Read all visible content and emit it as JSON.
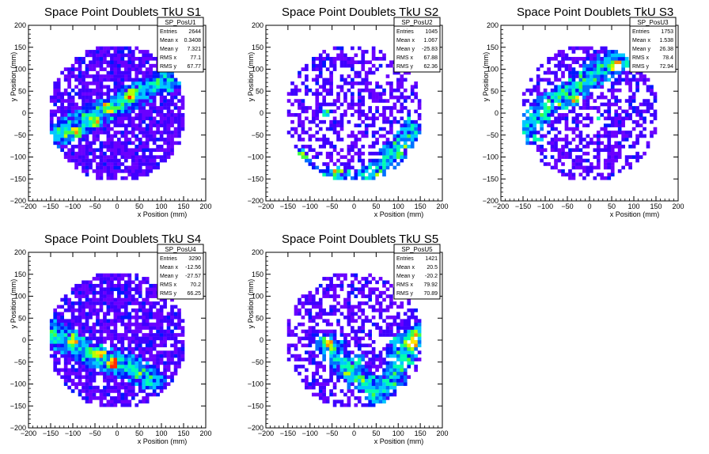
{
  "window": {
    "background": "#ffffff"
  },
  "chart_data": [
    {
      "type": "heatmap",
      "title": "Space Point Doublets TkU S1",
      "xlabel": "x Position (mm)",
      "ylabel": "y Position (mm)",
      "xlim": [
        -200,
        200
      ],
      "ylim": [
        -200,
        200
      ],
      "xticks": [
        -200,
        -150,
        -100,
        -50,
        0,
        50,
        100,
        150,
        200
      ],
      "yticks": [
        -200,
        -150,
        -100,
        -50,
        0,
        50,
        100,
        150,
        200
      ],
      "stats": {
        "name": "SP_PosU1",
        "rows": [
          [
            "Entries",
            "2644"
          ],
          [
            "Mean x",
            "0.3408"
          ],
          [
            "Mean y",
            "7.321"
          ],
          [
            "RMS x",
            "77.1"
          ],
          [
            "RMS y",
            "67.77"
          ]
        ]
      },
      "occupancy": 0.78,
      "band": [
        [
          -160,
          -60
        ],
        [
          -120,
          -40
        ],
        [
          -60,
          -10
        ],
        [
          0,
          20
        ],
        [
          60,
          50
        ],
        [
          120,
          80
        ]
      ],
      "hotspots": [
        [
          -90,
          -45
        ],
        [
          -20,
          10
        ],
        [
          30,
          40
        ],
        [
          -50,
          -20
        ]
      ]
    },
    {
      "type": "heatmap",
      "title": "Space Point Doublets TkU S2",
      "xlabel": "x Position (mm)",
      "ylabel": "y Position (mm)",
      "xlim": [
        -200,
        200
      ],
      "ylim": [
        -200,
        200
      ],
      "xticks": [
        -200,
        -150,
        -100,
        -50,
        0,
        50,
        100,
        150,
        200
      ],
      "yticks": [
        -200,
        -150,
        -100,
        -50,
        0,
        50,
        100,
        150,
        200
      ],
      "stats": {
        "name": "SP_PosU2",
        "rows": [
          [
            "Entries",
            "1045"
          ],
          [
            "Mean x",
            "1.067"
          ],
          [
            "Mean y",
            "-25.83"
          ],
          [
            "RMS x",
            "67.88"
          ],
          [
            "RMS y",
            "62.36"
          ]
        ]
      },
      "occupancy": 0.5,
      "band": [
        [
          -150,
          -90
        ],
        [
          -90,
          -150
        ],
        [
          0,
          -160
        ],
        [
          70,
          -120
        ],
        [
          130,
          -40
        ]
      ],
      "hotspots": [
        [
          -40,
          -130
        ],
        [
          -120,
          -100
        ],
        [
          -60,
          5
        ]
      ]
    },
    {
      "type": "heatmap",
      "title": "Space Point Doublets TkU S3",
      "xlabel": "x Position (mm)",
      "ylabel": "y Position (mm)",
      "xlim": [
        -200,
        200
      ],
      "ylim": [
        -200,
        200
      ],
      "xticks": [
        -200,
        -150,
        -100,
        -50,
        0,
        50,
        100,
        150,
        200
      ],
      "yticks": [
        -200,
        -150,
        -100,
        -50,
        0,
        50,
        100,
        150,
        200
      ],
      "stats": {
        "name": "SP_PosU3",
        "rows": [
          [
            "Entries",
            "1753"
          ],
          [
            "Mean x",
            "1.538"
          ],
          [
            "Mean y",
            "26.38"
          ],
          [
            "RMS x",
            "78.4"
          ],
          [
            "RMS y",
            "72.94"
          ]
        ]
      },
      "occupancy": 0.55,
      "band": [
        [
          -150,
          -40
        ],
        [
          -90,
          20
        ],
        [
          -30,
          60
        ],
        [
          40,
          110
        ],
        [
          100,
          130
        ]
      ],
      "hotspots": [
        [
          -30,
          30
        ],
        [
          -120,
          -60
        ],
        [
          60,
          110
        ],
        [
          20,
          -10
        ]
      ]
    },
    {
      "type": "heatmap",
      "title": "Space Point Doublets TkU S4",
      "xlabel": "x Position (mm)",
      "ylabel": "y Position (mm)",
      "xlim": [
        -200,
        200
      ],
      "ylim": [
        -200,
        200
      ],
      "xticks": [
        -200,
        -150,
        -100,
        -50,
        0,
        50,
        100,
        150,
        200
      ],
      "yticks": [
        -200,
        -150,
        -100,
        -50,
        0,
        50,
        100,
        150,
        200
      ],
      "stats": {
        "name": "SP_PosU4",
        "rows": [
          [
            "Entries",
            "3290"
          ],
          [
            "Mean x",
            "-12.56"
          ],
          [
            "Mean y",
            "-27.57"
          ],
          [
            "RMS x",
            "70.2"
          ],
          [
            "RMS y",
            "66.25"
          ]
        ]
      },
      "occupancy": 0.8,
      "band": [
        [
          -150,
          20
        ],
        [
          -100,
          -10
        ],
        [
          -40,
          -40
        ],
        [
          20,
          -60
        ],
        [
          80,
          -90
        ]
      ],
      "hotspots": [
        [
          -40,
          -30
        ],
        [
          -10,
          -55
        ],
        [
          -100,
          0
        ]
      ]
    },
    {
      "type": "heatmap",
      "title": "Space Point Doublets TkU S5",
      "xlabel": "x Position (mm)",
      "ylabel": "y Position (mm)",
      "xlim": [
        -200,
        200
      ],
      "ylim": [
        -200,
        200
      ],
      "xticks": [
        -200,
        -150,
        -100,
        -50,
        0,
        50,
        100,
        150,
        200
      ],
      "yticks": [
        -200,
        -150,
        -100,
        -50,
        0,
        50,
        100,
        150,
        200
      ],
      "stats": {
        "name": "SP_PosU5",
        "rows": [
          [
            "Entries",
            "1421"
          ],
          [
            "Mean x",
            "20.5"
          ],
          [
            "Mean y",
            "-20.2"
          ],
          [
            "RMS x",
            "79.92"
          ],
          [
            "RMS y",
            "70.89"
          ]
        ]
      },
      "occupancy": 0.55,
      "band": [
        [
          -60,
          -10
        ],
        [
          0,
          -80
        ],
        [
          60,
          -130
        ],
        [
          140,
          10
        ],
        [
          100,
          -20
        ]
      ],
      "hotspots": [
        [
          140,
          10
        ],
        [
          -60,
          -5
        ],
        [
          10,
          -40
        ],
        [
          130,
          -10
        ]
      ]
    }
  ]
}
